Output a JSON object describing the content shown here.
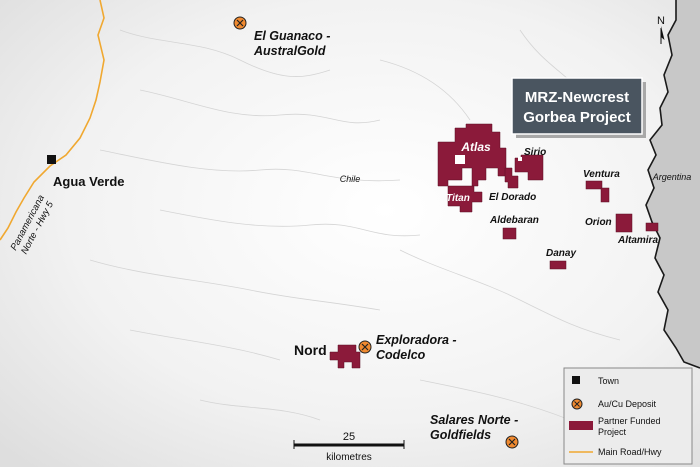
{
  "title": {
    "line1": "MRZ-Newcrest",
    "line2": "Gorbea Project"
  },
  "north_label": "N",
  "countries": {
    "chile": "Chile",
    "argentina": "Argentina"
  },
  "town": {
    "name": "Agua Verde"
  },
  "road": {
    "label_line1": "Panamericana",
    "label_line2": "Norte - Hwy 5"
  },
  "deposits": {
    "el_guanaco": {
      "line1": "El Guanaco -",
      "line2": "AustralGold"
    },
    "exploradora": {
      "line1": "Exploradora -",
      "line2": "Codelco"
    },
    "salares": {
      "line1": "Salares Norte -",
      "line2": "Goldfields"
    }
  },
  "projects": {
    "atlas": "Atlas",
    "titan": "Titan",
    "el_dorado": "El Dorado",
    "sirio": "Sirio",
    "ventura": "Ventura",
    "aldebaran": "Aldebaran",
    "orion": "Orion",
    "altamira": "Altamira",
    "danay": "Danay",
    "nord": "Nord"
  },
  "scale": {
    "value": "25",
    "unit": "kilometres"
  },
  "legend": {
    "town": "Town",
    "deposit": "Au/Cu Deposit",
    "partner_line1": "Partner Funded",
    "partner_line2": "Project",
    "road": "Main Road/Hwy"
  },
  "colors": {
    "project_fill": "#8b1a3a",
    "road": "#f0a830",
    "deposit_fill": "#f08a30",
    "title_bg": "#4a5560",
    "argentina_bg": "#c8c8c8"
  }
}
